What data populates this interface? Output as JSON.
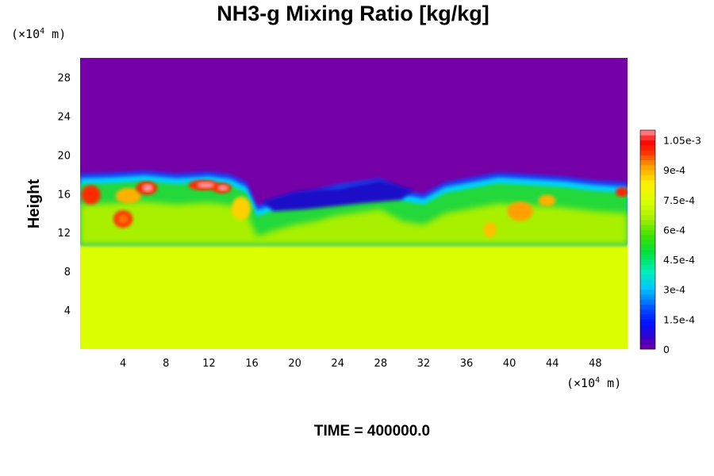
{
  "chart_data": {
    "type": "heatmap",
    "title": "NH3-g Mixing Ratio [kg/kg]",
    "ylabel": "Height",
    "x_unit": {
      "prefix": "(×10",
      "exp": "4",
      "suffix": " m)"
    },
    "y_unit": {
      "prefix": "(×10",
      "exp": "4",
      "suffix": " m)"
    },
    "xlim": [
      0,
      51
    ],
    "ylim": [
      0,
      30
    ],
    "x_ticks": [
      4,
      8,
      12,
      16,
      20,
      24,
      28,
      32,
      36,
      40,
      44,
      48
    ],
    "y_ticks": [
      4,
      8,
      12,
      16,
      20,
      24,
      28
    ],
    "colorbar": {
      "min": 0,
      "max": 0.0011,
      "tick_values": [
        0,
        0.00015,
        0.0003,
        0.00045,
        0.0006,
        0.00075,
        0.0009,
        0.00105
      ],
      "tick_labels": [
        "0",
        "1.5e-4",
        "3e-4",
        "4.5e-4",
        "6e-4",
        "7.5e-4",
        "9e-4",
        "1.05e-3"
      ]
    },
    "field_summary": {
      "upper_layer_value": 0,
      "lower_layer_value": 0.00078,
      "cloud_top_height": [
        17.5,
        18.5
      ],
      "uniform_layer_top_height": 11
    },
    "time_label": "TIME = 400000.0",
    "colors": {
      "upper": "#7500a8",
      "lower": "#dcff00",
      "peak": "#ff9aa0"
    }
  }
}
